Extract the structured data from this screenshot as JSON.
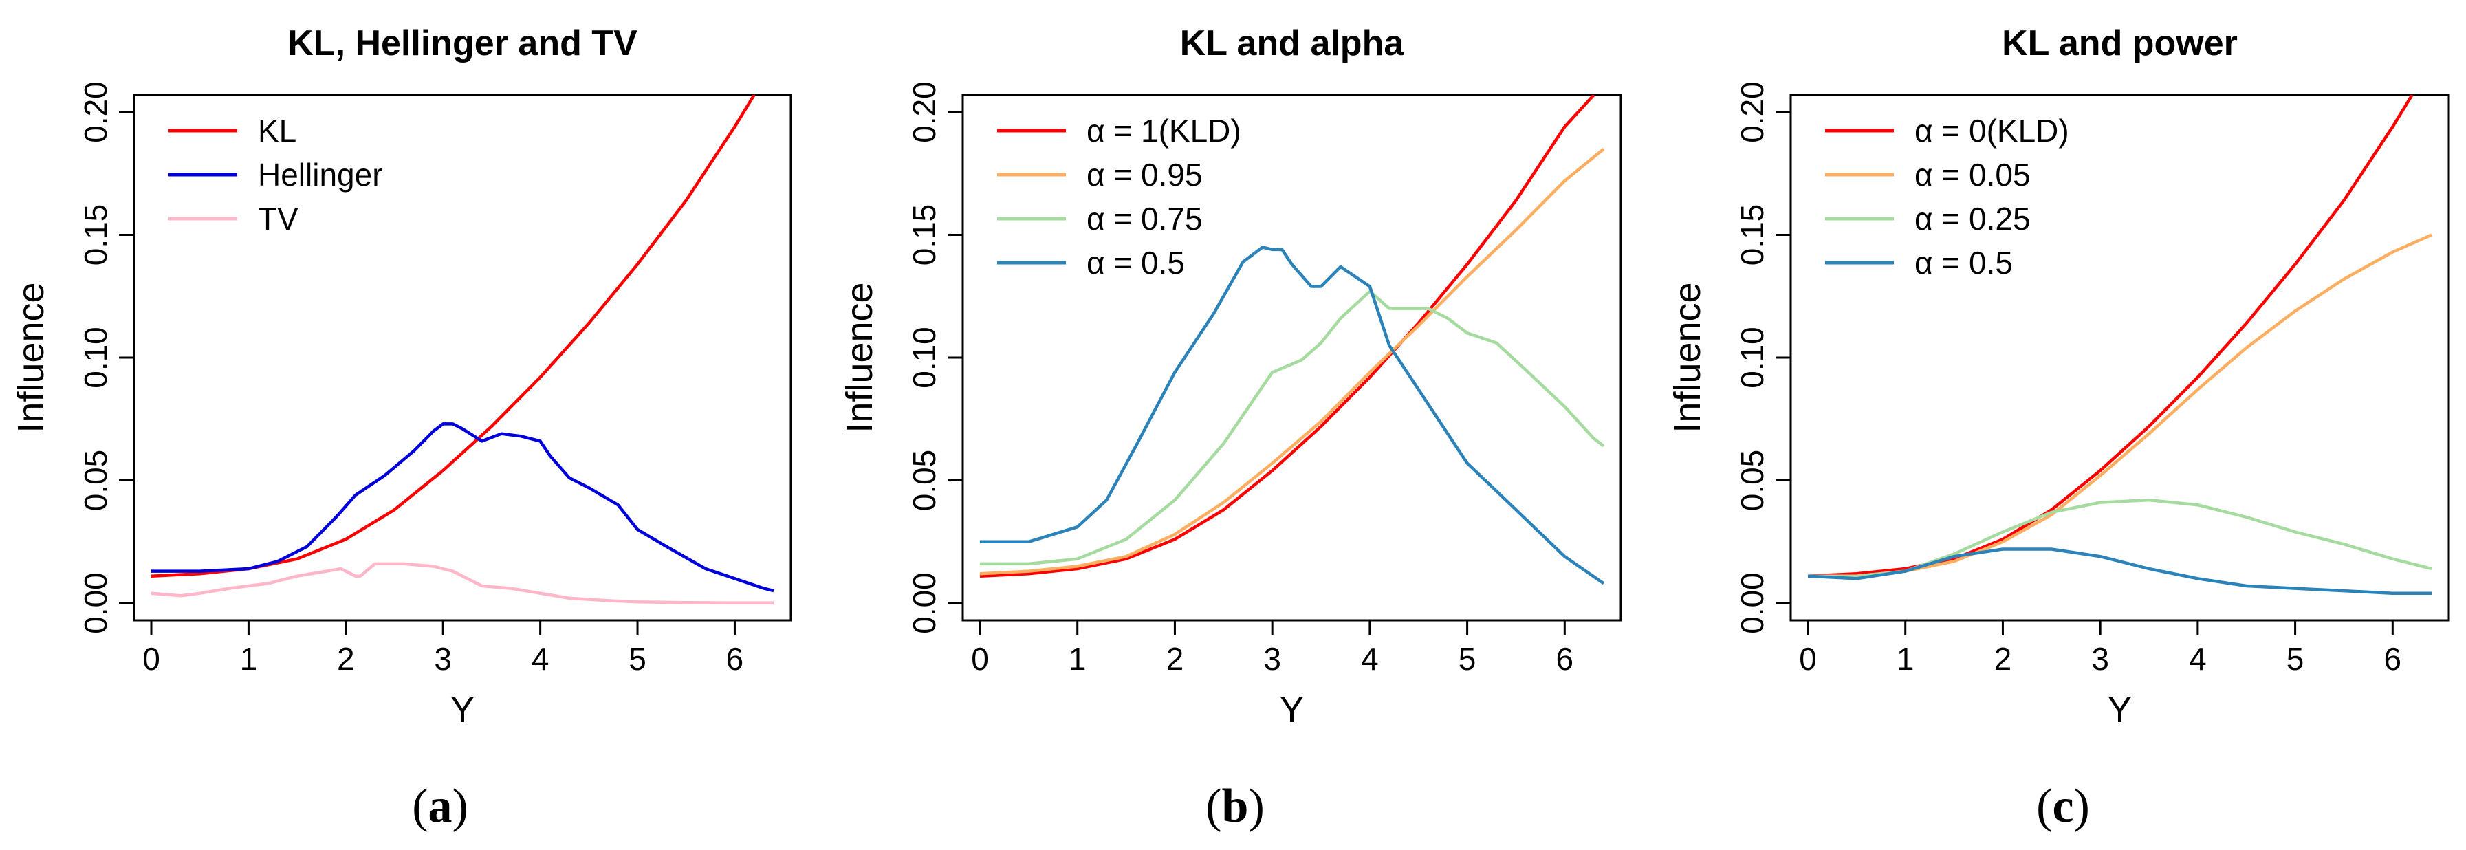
{
  "figure": {
    "captions": [
      {
        "open": "(",
        "letter": "a",
        "close": ")"
      },
      {
        "open": "(",
        "letter": "b",
        "close": ")"
      },
      {
        "open": "(",
        "letter": "c",
        "close": ")"
      }
    ]
  },
  "chart_data": [
    {
      "type": "line",
      "title": "KL, Hellinger and TV",
      "xlabel": "Y",
      "ylabel": "Influence",
      "xlim": [
        0,
        6.4
      ],
      "ylim": [
        0,
        0.2
      ],
      "xticks": [
        0,
        1,
        2,
        3,
        4,
        5,
        6
      ],
      "yticks": [
        "0.00",
        "0.05",
        "0.10",
        "0.15",
        "0.20"
      ],
      "legend_position": "top-left",
      "series": [
        {
          "name": "KL",
          "color": "#ff0000",
          "x": [
            0,
            0.5,
            1,
            1.5,
            2,
            2.5,
            3,
            3.5,
            4,
            4.5,
            5,
            5.5,
            6,
            6.2
          ],
          "y": [
            0.011,
            0.012,
            0.014,
            0.018,
            0.026,
            0.038,
            0.054,
            0.072,
            0.092,
            0.114,
            0.138,
            0.164,
            0.194,
            0.207
          ]
        },
        {
          "name": "Hellinger",
          "color": "#0000dd",
          "x": [
            0,
            0.5,
            1,
            1.3,
            1.6,
            1.9,
            2.1,
            2.4,
            2.7,
            2.9,
            3.0,
            3.1,
            3.2,
            3.4,
            3.6,
            3.8,
            4.0,
            4.1,
            4.3,
            4.5,
            4.8,
            5.0,
            5.3,
            5.7,
            6.0,
            6.3,
            6.4
          ],
          "y": [
            0.013,
            0.013,
            0.014,
            0.017,
            0.023,
            0.035,
            0.044,
            0.052,
            0.062,
            0.07,
            0.073,
            0.073,
            0.071,
            0.066,
            0.069,
            0.068,
            0.066,
            0.06,
            0.051,
            0.047,
            0.04,
            0.03,
            0.023,
            0.014,
            0.01,
            0.006,
            0.005
          ]
        },
        {
          "name": "TV",
          "color": "#ffb6c8",
          "x": [
            0,
            0.3,
            0.5,
            0.8,
            1.2,
            1.5,
            1.8,
            1.95,
            2.1,
            2.15,
            2.3,
            2.6,
            2.9,
            3.1,
            3.4,
            3.7,
            4.0,
            4.3,
            4.7,
            5.0,
            5.5,
            6.0,
            6.4
          ],
          "y": [
            0.004,
            0.003,
            0.004,
            0.006,
            0.008,
            0.011,
            0.013,
            0.014,
            0.011,
            0.011,
            0.016,
            0.016,
            0.015,
            0.013,
            0.007,
            0.006,
            0.004,
            0.002,
            0.001,
            0.0005,
            0.0002,
            0.0001,
            0.0001
          ]
        }
      ]
    },
    {
      "type": "line",
      "title": "KL and alpha",
      "xlabel": "Y",
      "ylabel": "Influence",
      "xlim": [
        0,
        6.4
      ],
      "ylim": [
        0,
        0.2
      ],
      "xticks": [
        0,
        1,
        2,
        3,
        4,
        5,
        6
      ],
      "yticks": [
        "0.00",
        "0.05",
        "0.10",
        "0.15",
        "0.20"
      ],
      "legend_position": "top-left",
      "series": [
        {
          "name": "α = 1(KLD)",
          "color": "#ff0000",
          "x": [
            0,
            0.5,
            1,
            1.5,
            2,
            2.5,
            3,
            3.5,
            4,
            4.5,
            5,
            5.5,
            6,
            6.3
          ],
          "y": [
            0.011,
            0.012,
            0.014,
            0.018,
            0.026,
            0.038,
            0.054,
            0.072,
            0.092,
            0.114,
            0.138,
            0.164,
            0.194,
            0.207
          ]
        },
        {
          "name": "α = 0.95",
          "color": "#fdae61",
          "x": [
            0,
            0.5,
            1,
            1.5,
            2,
            2.5,
            3,
            3.5,
            4,
            4.5,
            5,
            5.5,
            6,
            6.4
          ],
          "y": [
            0.012,
            0.013,
            0.015,
            0.019,
            0.028,
            0.041,
            0.057,
            0.074,
            0.094,
            0.113,
            0.133,
            0.152,
            0.172,
            0.185
          ]
        },
        {
          "name": "α = 0.75",
          "color": "#a6dba0",
          "x": [
            0,
            0.5,
            1,
            1.5,
            2,
            2.5,
            3,
            3.3,
            3.5,
            3.7,
            4.0,
            4.2,
            4.4,
            4.6,
            4.8,
            5.0,
            5.3,
            5.6,
            6.0,
            6.3,
            6.4
          ],
          "y": [
            0.016,
            0.016,
            0.018,
            0.026,
            0.042,
            0.065,
            0.094,
            0.099,
            0.106,
            0.116,
            0.127,
            0.12,
            0.12,
            0.12,
            0.116,
            0.11,
            0.106,
            0.095,
            0.08,
            0.067,
            0.064
          ]
        },
        {
          "name": "α = 0.5",
          "color": "#2b83ba",
          "x": [
            0,
            0.5,
            1,
            1.3,
            1.6,
            2.0,
            2.4,
            2.7,
            2.9,
            3.0,
            3.1,
            3.2,
            3.4,
            3.5,
            3.7,
            4.0,
            4.2,
            4.4,
            4.7,
            5.0,
            5.5,
            6.0,
            6.4
          ],
          "y": [
            0.025,
            0.025,
            0.031,
            0.042,
            0.064,
            0.094,
            0.118,
            0.139,
            0.145,
            0.144,
            0.144,
            0.138,
            0.129,
            0.129,
            0.137,
            0.129,
            0.105,
            0.093,
            0.075,
            0.057,
            0.038,
            0.019,
            0.008
          ]
        }
      ]
    },
    {
      "type": "line",
      "title": "KL and power",
      "xlabel": "Y",
      "ylabel": "Influence",
      "xlim": [
        0,
        6.4
      ],
      "ylim": [
        0,
        0.2
      ],
      "xticks": [
        0,
        1,
        2,
        3,
        4,
        5,
        6
      ],
      "yticks": [
        "0.00",
        "0.05",
        "0.10",
        "0.15",
        "0.20"
      ],
      "legend_position": "top-left",
      "series": [
        {
          "name": "α = 0(KLD)",
          "color": "#ff0000",
          "x": [
            0,
            0.5,
            1,
            1.5,
            2,
            2.5,
            3,
            3.5,
            4,
            4.5,
            5,
            5.5,
            6,
            6.2
          ],
          "y": [
            0.011,
            0.012,
            0.014,
            0.018,
            0.026,
            0.038,
            0.054,
            0.072,
            0.092,
            0.114,
            0.138,
            0.164,
            0.194,
            0.207
          ]
        },
        {
          "name": "α = 0.05",
          "color": "#fdae61",
          "x": [
            0,
            0.5,
            1,
            1.5,
            2,
            2.5,
            3,
            3.5,
            4,
            4.5,
            5,
            5.5,
            6,
            6.4
          ],
          "y": [
            0.011,
            0.011,
            0.013,
            0.017,
            0.025,
            0.036,
            0.052,
            0.069,
            0.087,
            0.104,
            0.119,
            0.132,
            0.143,
            0.15
          ]
        },
        {
          "name": "α = 0.25",
          "color": "#a6dba0",
          "x": [
            0,
            0.5,
            1,
            1.5,
            2,
            2.5,
            3,
            3.5,
            4,
            4.5,
            5,
            5.5,
            6,
            6.4
          ],
          "y": [
            0.011,
            0.011,
            0.013,
            0.02,
            0.029,
            0.037,
            0.041,
            0.042,
            0.04,
            0.035,
            0.029,
            0.024,
            0.018,
            0.014
          ]
        },
        {
          "name": "α = 0.5",
          "color": "#2b83ba",
          "x": [
            0,
            0.5,
            1,
            1.5,
            2,
            2.5,
            3,
            3.5,
            4,
            4.5,
            5,
            5.5,
            6,
            6.4
          ],
          "y": [
            0.011,
            0.01,
            0.013,
            0.019,
            0.022,
            0.022,
            0.019,
            0.014,
            0.01,
            0.007,
            0.006,
            0.005,
            0.004,
            0.004
          ]
        }
      ]
    }
  ]
}
